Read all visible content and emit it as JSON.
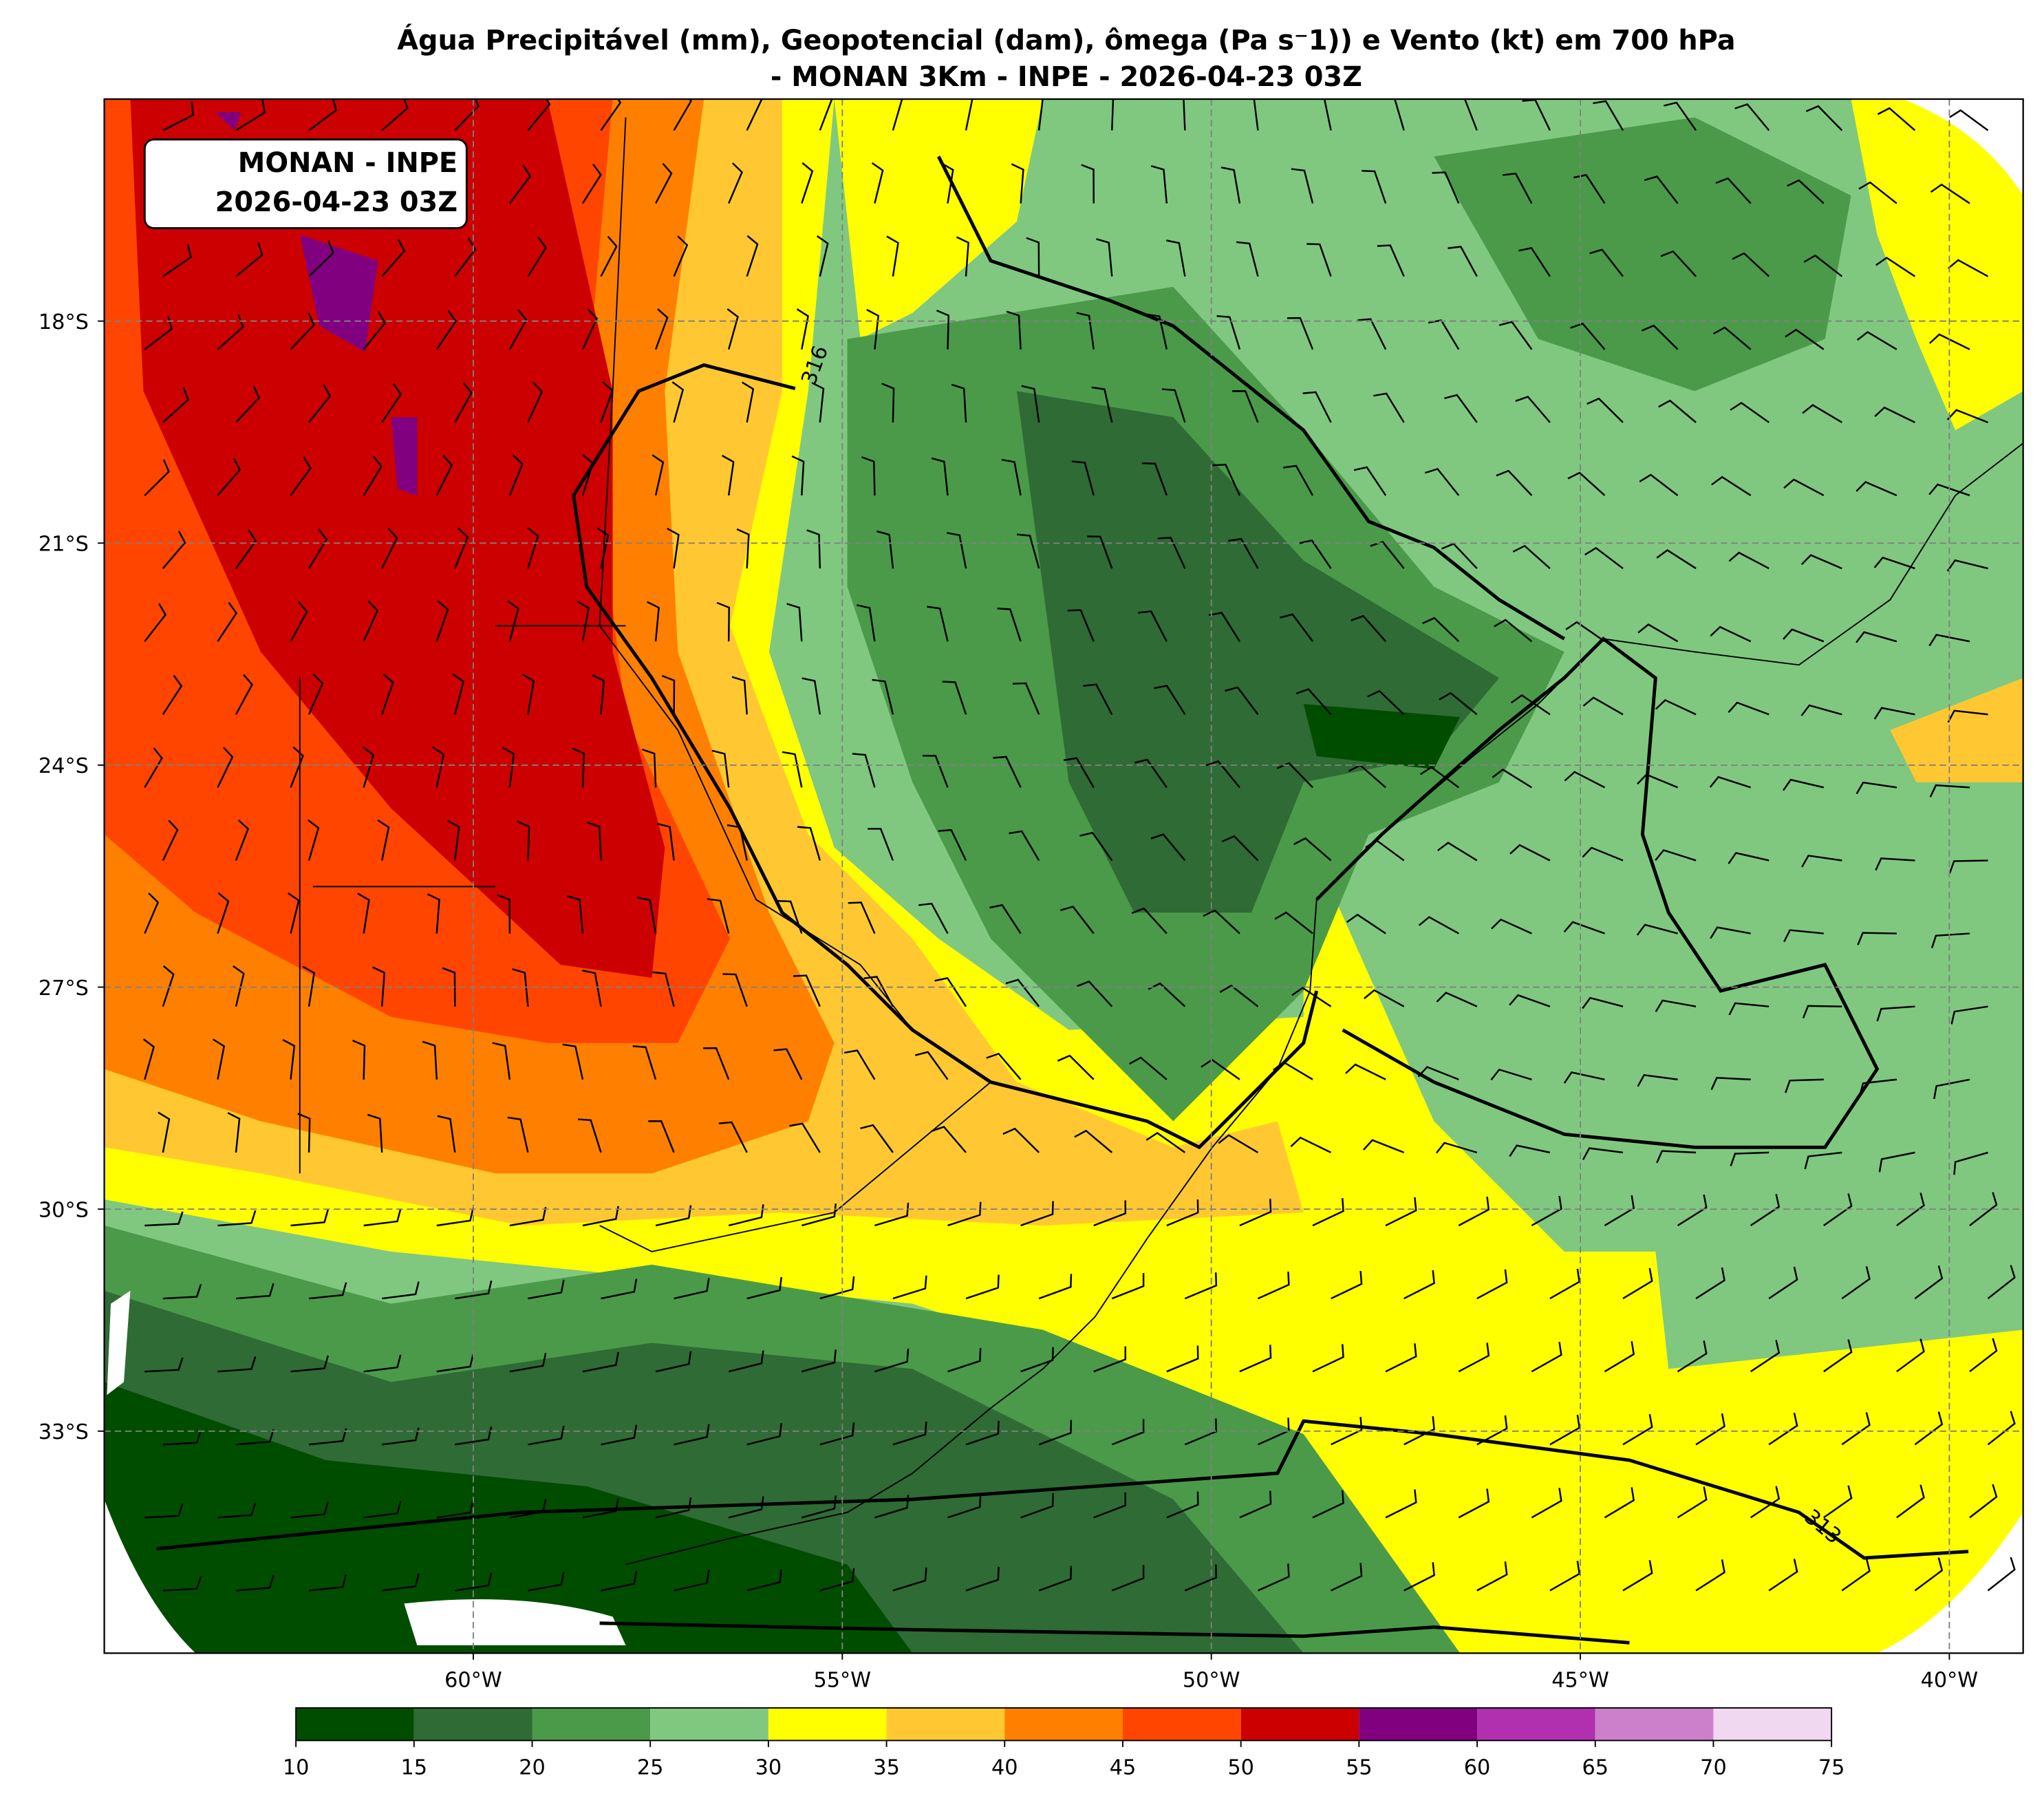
{
  "chart_data": {
    "type": "map",
    "title": "Água Precipitável (mm), Geopotencial (dam), ômega (Pa s⁻1)) e Vento (kt) em 700 hPa",
    "subtitle": "- MONAN 3Km - INPE - 2026-04-23 03Z",
    "annotation_box": [
      "MONAN - INPE",
      "2026-04-23 03Z"
    ],
    "xlim": [
      -65,
      -39
    ],
    "ylim": [
      -36,
      -15
    ],
    "xticks": [
      {
        "value": -60,
        "label": "60°W"
      },
      {
        "value": -55,
        "label": "55°W"
      },
      {
        "value": -50,
        "label": "50°W"
      },
      {
        "value": -45,
        "label": "45°W"
      },
      {
        "value": -40,
        "label": "40°W"
      }
    ],
    "yticks": [
      {
        "value": -18,
        "label": "18°S"
      },
      {
        "value": -21,
        "label": "21°S"
      },
      {
        "value": -24,
        "label": "24°S"
      },
      {
        "value": -27,
        "label": "27°S"
      },
      {
        "value": -30,
        "label": "30°S"
      },
      {
        "value": -33,
        "label": "33°S"
      }
    ],
    "grid": true,
    "contour_labels": [
      "316",
      "313"
    ],
    "colorbar": {
      "ticks": [
        10,
        15,
        20,
        25,
        30,
        35,
        40,
        45,
        50,
        55,
        60,
        65,
        70,
        75
      ],
      "colors": [
        "#004d00",
        "#2f6b34",
        "#4a9a4a",
        "#80c880",
        "#ffff00",
        "#ffc832",
        "#ff8000",
        "#ff4500",
        "#cc0000",
        "#800080",
        "#b030b0",
        "#cc80cc",
        "#f0d8f0"
      ]
    }
  }
}
